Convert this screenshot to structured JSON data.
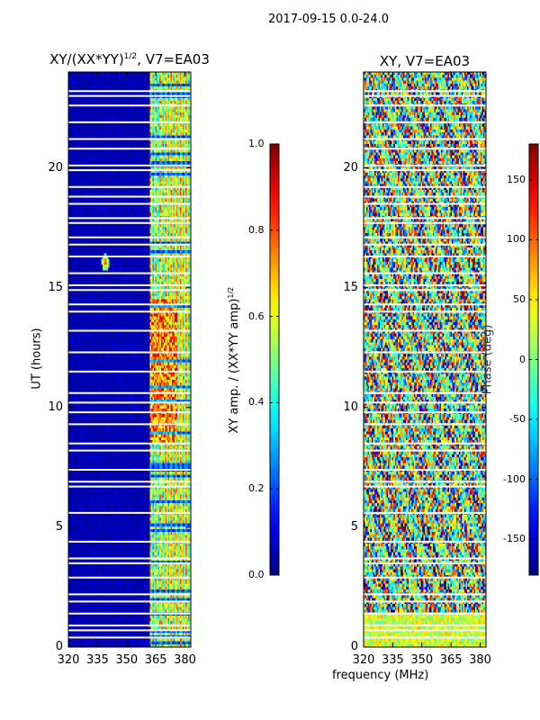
{
  "figure": {
    "suptitle": "2017-09-15 0.0-24.0",
    "xlabel": "frequency (MHz)",
    "ylabel": "UT (hours)"
  },
  "chart_data": [
    {
      "type": "heatmap",
      "title": "XY/(XX*YY)^1/2, V7=EA03",
      "title_main": "XY/(XX*YY)",
      "title_sup": "1/2",
      "title_tail": ", V7=EA03",
      "xlabel": "frequency (MHz)",
      "ylabel": "UT (hours)",
      "xlim": [
        320,
        383
      ],
      "ylim": [
        0,
        24
      ],
      "xticks": [
        "320",
        "335",
        "350",
        "365",
        "380"
      ],
      "yticks": [
        "0",
        "5",
        "10",
        "15",
        "20"
      ],
      "colorbar": {
        "label": "XY amp. / (XX*YY amp)^1/2",
        "label_main": "XY amp. / (XX*YY amp)",
        "label_sup": "1/2",
        "range": [
          0.0,
          1.0
        ],
        "ticks": [
          "0.0",
          "0.2",
          "0.4",
          "0.6",
          "0.8",
          "1.0"
        ]
      },
      "gaps_ut": [
        0.4,
        0.7,
        0.9,
        1.4,
        1.9,
        2.2,
        2.9,
        3.5,
        3.7,
        4.4,
        5.6,
        6.7,
        6.9,
        7.4,
        8.2,
        8.5,
        9.3,
        9.8,
        10.2,
        10.6,
        11.5,
        12.3,
        13.2,
        14.0,
        14.3,
        14.9,
        15.1,
        15.6,
        16.3,
        16.8,
        17.1,
        17.7,
        17.9,
        18.5,
        18.8,
        19.2,
        19.9,
        20.1,
        20.8,
        21.2,
        21.9,
        22.6,
        23.0,
        23.2
      ],
      "description": "Normalized cross-polarization amplitude: low (~0.05) below 362 MHz, elevated (0.3-0.9) between 362 and 383 MHz, strongest around UT 9-14 h; bright spot near 339 MHz at UT 16 h."
    },
    {
      "type": "heatmap",
      "title": "XY, V7=EA03",
      "xlabel": "frequency (MHz)",
      "ylabel": "UT (hours)",
      "xlim": [
        320,
        383
      ],
      "ylim": [
        0,
        24
      ],
      "xticks": [
        "320",
        "335",
        "350",
        "365",
        "380"
      ],
      "yticks": [
        "0",
        "5",
        "10",
        "15",
        "20"
      ],
      "colorbar": {
        "label": "Phase (deg)",
        "range": [
          -180,
          180
        ],
        "ticks": [
          "-150",
          "-100",
          "-50",
          "0",
          "50",
          "100",
          "150"
        ]
      },
      "description": "XY phase in degrees spanning the full -180 to 180 range with vertical striping across frequency."
    }
  ]
}
